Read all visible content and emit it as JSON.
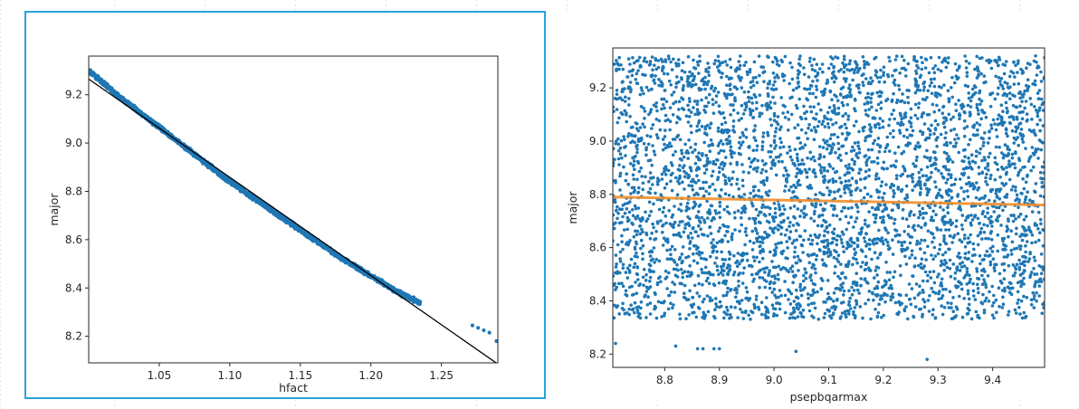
{
  "chart_data": [
    {
      "type": "scatter",
      "title": "",
      "xlabel": "hfact",
      "ylabel": "major",
      "xlim": [
        1.0,
        1.29
      ],
      "ylim": [
        8.09,
        9.36
      ],
      "xticks": [
        "1.05",
        "1.10",
        "1.15",
        "1.20",
        "1.25"
      ],
      "xtick_values": [
        1.05,
        1.1,
        1.15,
        1.2,
        1.25
      ],
      "yticks": [
        "8.2",
        "8.4",
        "8.6",
        "8.8",
        "9.0",
        "9.2"
      ],
      "ytick_values": [
        8.2,
        8.4,
        8.6,
        8.8,
        9.0,
        9.2
      ],
      "point_color": "#1f77b4",
      "fit_color": "#000000",
      "series": [
        {
          "kind": "dense_band",
          "x": [
            1.0,
            1.02,
            1.04,
            1.06,
            1.08,
            1.1,
            1.12,
            1.14,
            1.16,
            1.18,
            1.2,
            1.22,
            1.235
          ],
          "y": [
            9.3,
            9.2,
            9.11,
            9.02,
            8.93,
            8.84,
            8.76,
            8.68,
            8.6,
            8.52,
            8.45,
            8.38,
            8.34
          ]
        },
        {
          "kind": "outliers",
          "x": [
            1.272,
            1.276,
            1.28,
            1.284,
            1.289
          ],
          "y": [
            8.245,
            8.235,
            8.225,
            8.215,
            8.18
          ]
        }
      ],
      "fit_line": {
        "x": [
          1.0,
          1.29
        ],
        "y": [
          9.265,
          8.085
        ]
      }
    },
    {
      "type": "scatter",
      "title": "",
      "xlabel": "psepbqarmax",
      "ylabel": "major",
      "xlim": [
        8.705,
        9.495
      ],
      "ylim": [
        8.15,
        9.35
      ],
      "xticks": [
        "8.8",
        "8.9",
        "9.0",
        "9.1",
        "9.2",
        "9.3",
        "9.4"
      ],
      "xtick_values": [
        8.8,
        8.9,
        9.0,
        9.1,
        9.2,
        9.3,
        9.4
      ],
      "yticks": [
        "8.2",
        "8.4",
        "8.6",
        "8.8",
        "9.0",
        "9.2"
      ],
      "ytick_values": [
        8.2,
        8.4,
        8.6,
        8.8,
        9.0,
        9.2
      ],
      "point_color": "#1f77b4",
      "fit_color": "#f28e2b",
      "point_cloud": {
        "x_range": [
          8.705,
          9.495
        ],
        "y_range": [
          8.33,
          9.32
        ]
      },
      "outliers": {
        "x": [
          8.71,
          8.82,
          8.86,
          8.87,
          8.89,
          8.9,
          9.04,
          9.28
        ],
        "y": [
          8.24,
          8.23,
          8.22,
          8.22,
          8.22,
          8.22,
          8.21,
          8.18
        ]
      },
      "fit_line": {
        "x": [
          8.705,
          9.495
        ],
        "y": [
          8.79,
          8.76
        ]
      }
    }
  ]
}
